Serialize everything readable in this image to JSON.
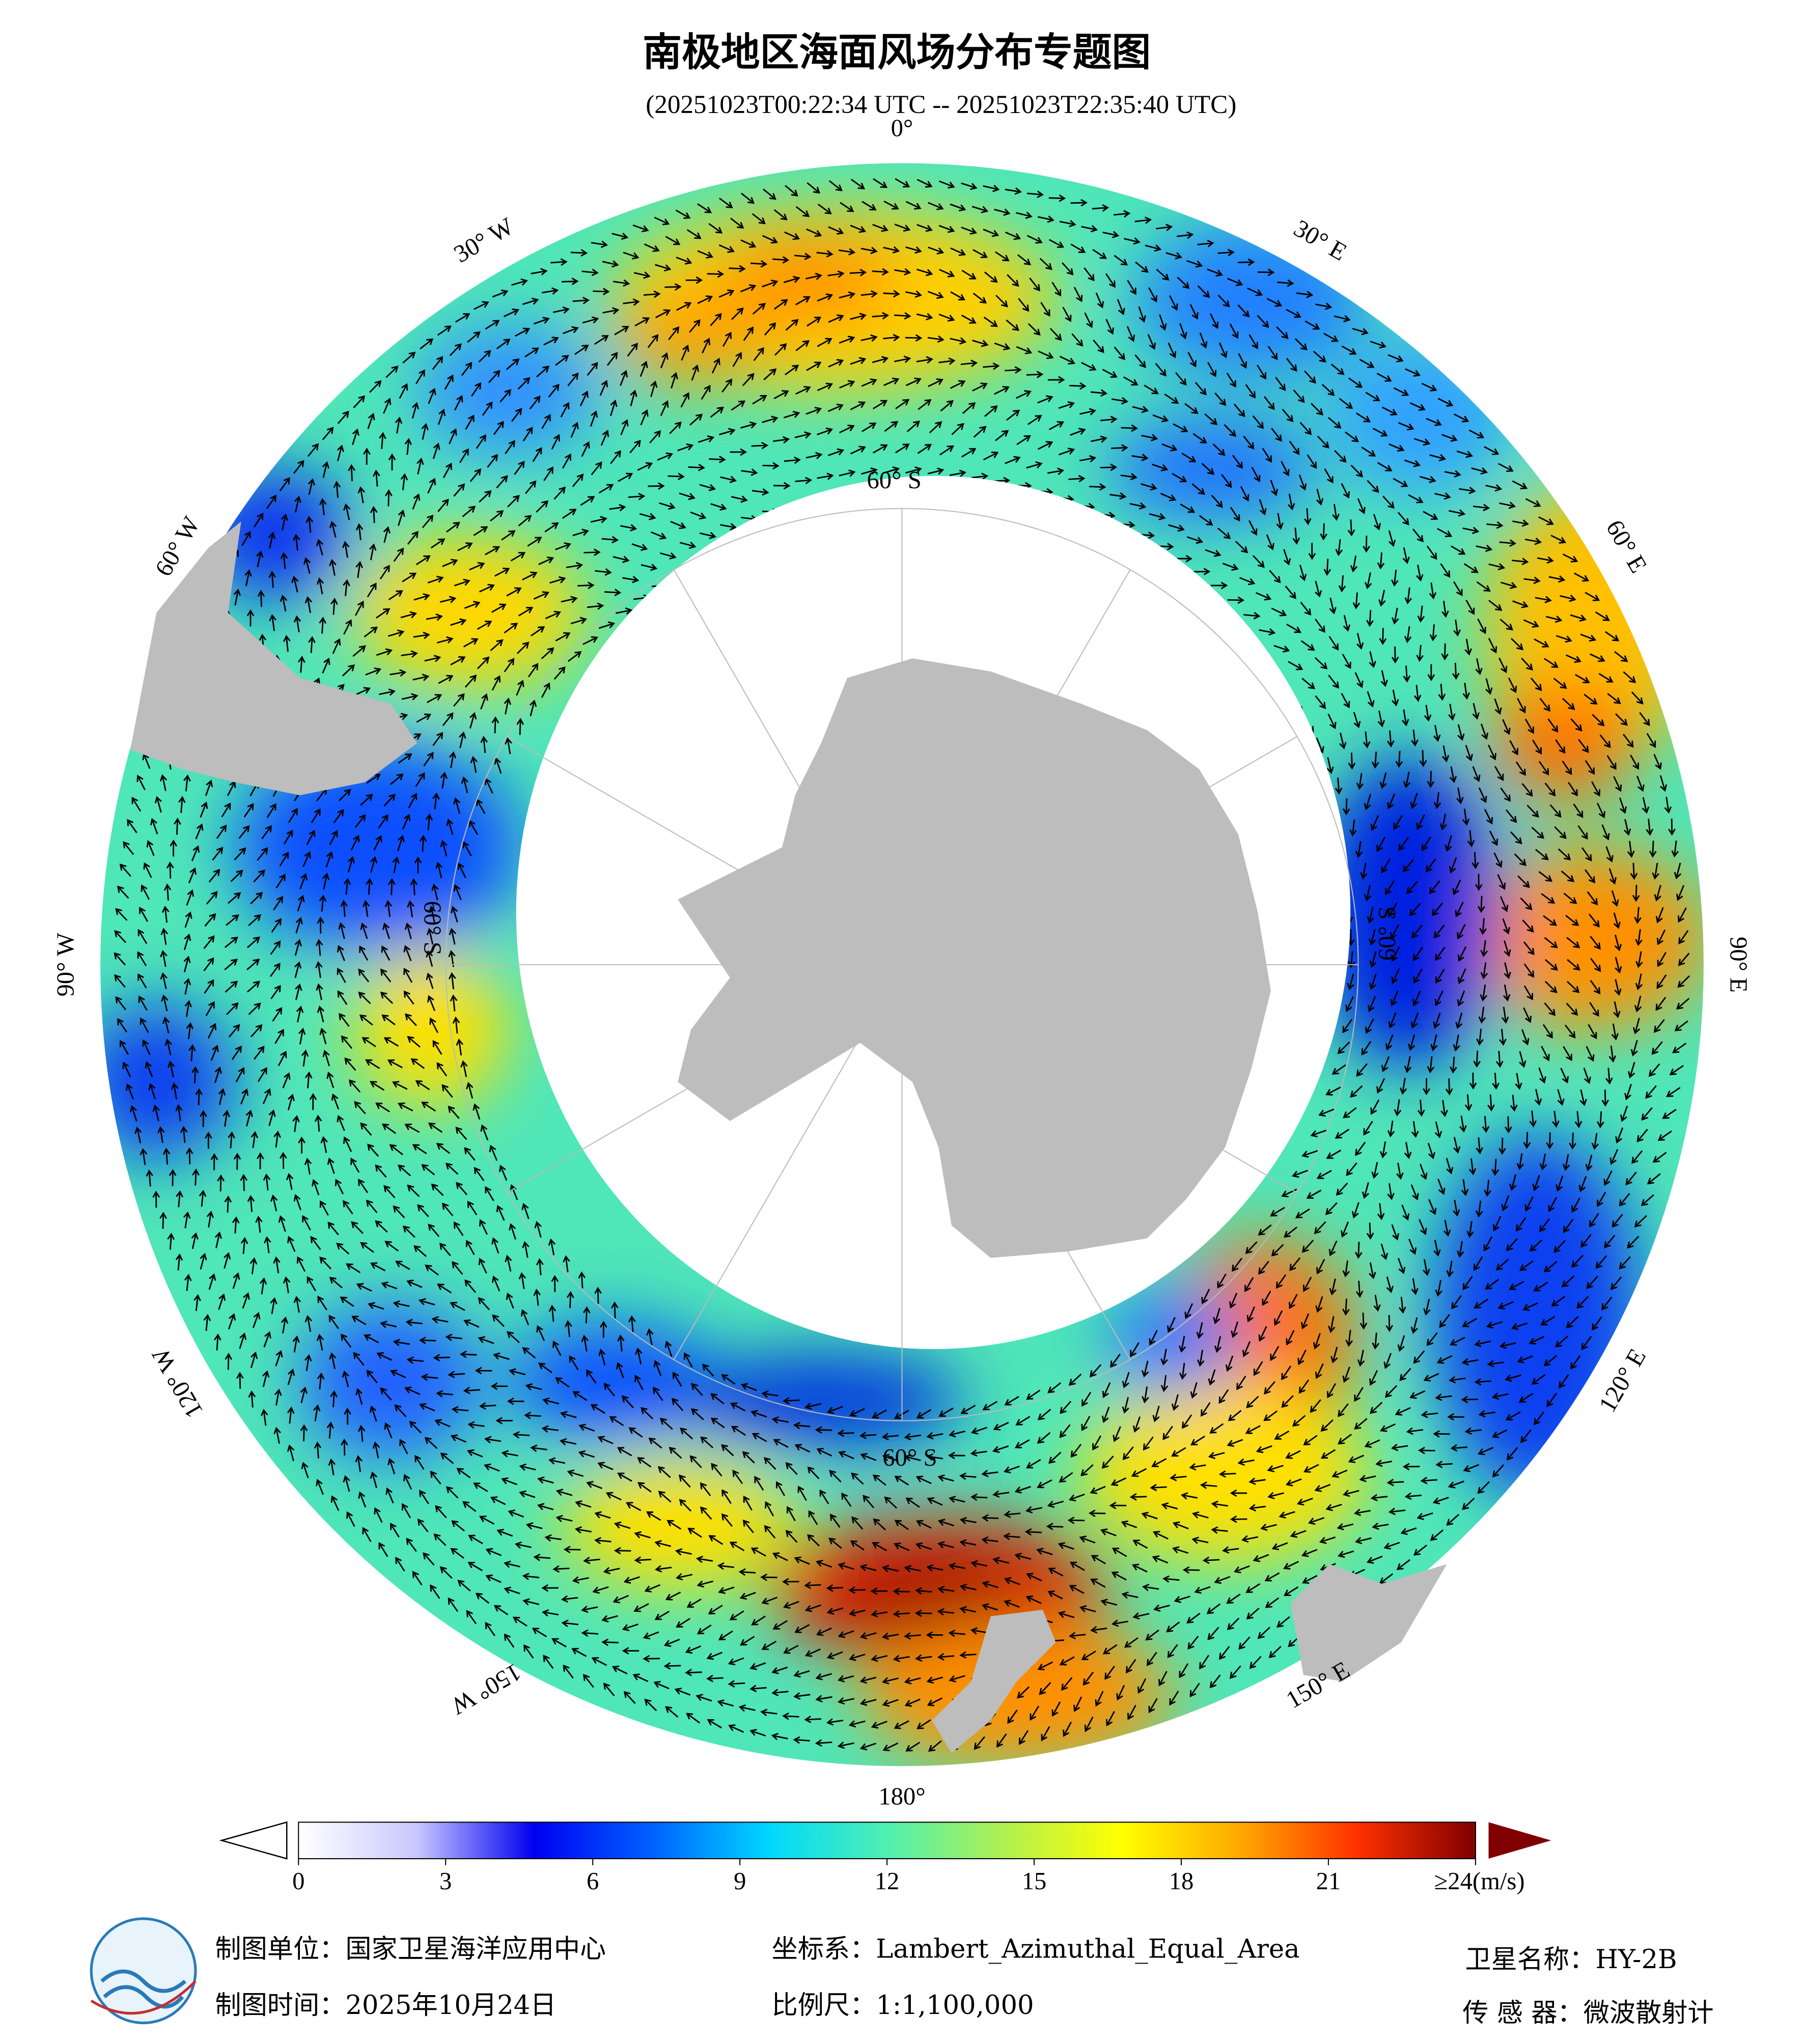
{
  "title": "南极地区海面风场分布专题图",
  "subtitle": "(20251023T00:22:34 UTC -- 20251023T22:35:40 UTC)",
  "map": {
    "longitude_labels": [
      "0°",
      "30° E",
      "60° E",
      "90° E",
      "120° E",
      "150° E",
      "180°",
      "150° W",
      "120° W",
      "90° W",
      "60° W",
      "30° W"
    ],
    "latitude_label": "60° S"
  },
  "colorbar": {
    "lim": [
      0,
      24
    ],
    "ticks": [
      0,
      3,
      6,
      9,
      12,
      15,
      18,
      21,
      {
        "value": 24,
        "label": "≥24(m/s)"
      }
    ],
    "colors": [
      "#ffffff",
      "#c8c8ff",
      "#0000f0",
      "#0060ff",
      "#00d8ff",
      "#50f0b0",
      "#b0f050",
      "#ffff00",
      "#ffa800",
      "#ff3000",
      "#800000"
    ]
  },
  "footer": {
    "unit": "制图单位：国家卫星海洋应用中心",
    "date": "制图时间：2025年10月24日",
    "projection": "坐标系：Lambert_Azimuthal_Equal_Area",
    "scale": "比例尺：1:1,100,000",
    "satellite": "卫星名称：HY-2B",
    "sensor": "传 感 器：微波散射计"
  }
}
